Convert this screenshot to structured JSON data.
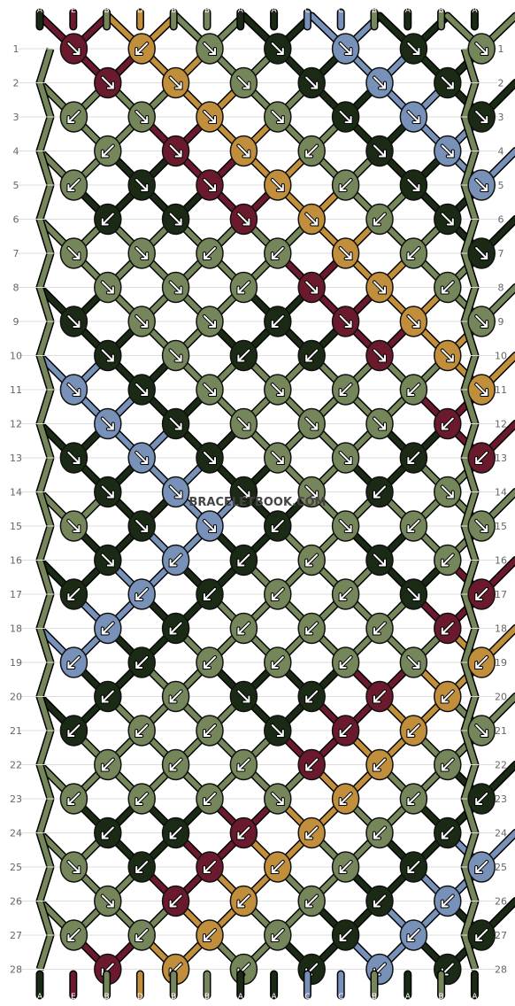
{
  "title": "BRACELETBOOK.COM",
  "colors": {
    "A": "#1a2a14",
    "B": "#75865a",
    "C": "#7891b8",
    "D": "#c18e3b",
    "E": "#6a1a2c"
  },
  "top_strings": [
    "A",
    "E",
    "B",
    "D",
    "B",
    "B",
    "A",
    "A",
    "C",
    "C",
    "B",
    "A",
    "B",
    "A"
  ],
  "bottom_strings": [
    "A",
    "E",
    "B",
    "D",
    "B",
    "B",
    "A",
    "A",
    "C",
    "C",
    "B",
    "A",
    "B",
    "A"
  ],
  "rows": [
    {
      "label": "1",
      "knots": [
        {
          "c": "E",
          "d": "r"
        },
        {
          "c": "D",
          "d": "l"
        },
        {
          "c": "B",
          "d": "r"
        },
        {
          "c": "A",
          "d": "r"
        },
        {
          "c": "C",
          "d": "r"
        },
        {
          "c": "A",
          "d": "r"
        },
        {
          "c": "B",
          "d": "r"
        }
      ]
    },
    {
      "label": "2",
      "knots": [
        {
          "c": "E",
          "d": "r"
        },
        {
          "c": "D",
          "d": "r"
        },
        {
          "c": "B",
          "d": "r"
        },
        {
          "c": "A",
          "d": "r"
        },
        {
          "c": "C",
          "d": "r"
        },
        {
          "c": "A",
          "d": "r"
        }
      ]
    },
    {
      "label": "3",
      "knots": [
        {
          "c": "B",
          "d": "l"
        },
        {
          "c": "B",
          "d": "r"
        },
        {
          "c": "D",
          "d": "r"
        },
        {
          "c": "B",
          "d": "r"
        },
        {
          "c": "A",
          "d": "r"
        },
        {
          "c": "C",
          "d": "r"
        },
        {
          "c": "A",
          "d": "r"
        }
      ]
    },
    {
      "label": "4",
      "knots": [
        {
          "c": "B",
          "d": "l"
        },
        {
          "c": "E",
          "d": "r"
        },
        {
          "c": "D",
          "d": "r"
        },
        {
          "c": "B",
          "d": "l"
        },
        {
          "c": "A",
          "d": "r"
        },
        {
          "c": "C",
          "d": "r"
        }
      ]
    },
    {
      "label": "5",
      "knots": [
        {
          "c": "B",
          "d": "l"
        },
        {
          "c": "A",
          "d": "r"
        },
        {
          "c": "E",
          "d": "r"
        },
        {
          "c": "D",
          "d": "r"
        },
        {
          "c": "B",
          "d": "l"
        },
        {
          "c": "A",
          "d": "r"
        },
        {
          "c": "C",
          "d": "r"
        }
      ]
    },
    {
      "label": "6",
      "knots": [
        {
          "c": "A",
          "d": "l"
        },
        {
          "c": "A",
          "d": "r"
        },
        {
          "c": "E",
          "d": "r"
        },
        {
          "c": "D",
          "d": "r"
        },
        {
          "c": "B",
          "d": "l"
        },
        {
          "c": "A",
          "d": "r"
        }
      ]
    },
    {
      "label": "7",
      "knots": [
        {
          "c": "B",
          "d": "r"
        },
        {
          "c": "B",
          "d": "r"
        },
        {
          "c": "B",
          "d": "l"
        },
        {
          "c": "B",
          "d": "l"
        },
        {
          "c": "D",
          "d": "r"
        },
        {
          "c": "B",
          "d": "l"
        },
        {
          "c": "A",
          "d": "r"
        }
      ]
    },
    {
      "label": "8",
      "knots": [
        {
          "c": "B",
          "d": "r"
        },
        {
          "c": "B",
          "d": "r"
        },
        {
          "c": "B",
          "d": "l"
        },
        {
          "c": "E",
          "d": "r"
        },
        {
          "c": "D",
          "d": "r"
        },
        {
          "c": "B",
          "d": "l"
        }
      ]
    },
    {
      "label": "9",
      "knots": [
        {
          "c": "A",
          "d": "r"
        },
        {
          "c": "B",
          "d": "r"
        },
        {
          "c": "B",
          "d": "r"
        },
        {
          "c": "A",
          "d": "l"
        },
        {
          "c": "E",
          "d": "r"
        },
        {
          "c": "D",
          "d": "r"
        },
        {
          "c": "B",
          "d": "r"
        }
      ]
    },
    {
      "label": "10",
      "knots": [
        {
          "c": "A",
          "d": "r"
        },
        {
          "c": "B",
          "d": "r"
        },
        {
          "c": "A",
          "d": "l"
        },
        {
          "c": "A",
          "d": "l"
        },
        {
          "c": "E",
          "d": "r"
        },
        {
          "c": "D",
          "d": "r"
        }
      ]
    },
    {
      "label": "11",
      "knots": [
        {
          "c": "C",
          "d": "r"
        },
        {
          "c": "A",
          "d": "r"
        },
        {
          "c": "B",
          "d": "r"
        },
        {
          "c": "B",
          "d": "r"
        },
        {
          "c": "B",
          "d": "l"
        },
        {
          "c": "B",
          "d": "l"
        },
        {
          "c": "D",
          "d": "r"
        }
      ]
    },
    {
      "label": "12",
      "knots": [
        {
          "c": "C",
          "d": "r"
        },
        {
          "c": "A",
          "d": "r"
        },
        {
          "c": "B",
          "d": "r"
        },
        {
          "c": "B",
          "d": "r"
        },
        {
          "c": "B",
          "d": "r"
        },
        {
          "c": "E",
          "d": "l"
        }
      ]
    },
    {
      "label": "13",
      "knots": [
        {
          "c": "A",
          "d": "r"
        },
        {
          "c": "C",
          "d": "r"
        },
        {
          "c": "A",
          "d": "r"
        },
        {
          "c": "B",
          "d": "r"
        },
        {
          "c": "B",
          "d": "r"
        },
        {
          "c": "A",
          "d": "l"
        },
        {
          "c": "E",
          "d": "l"
        }
      ]
    },
    {
      "label": "14",
      "knots": [
        {
          "c": "A",
          "d": "r"
        },
        {
          "c": "C",
          "d": "r"
        },
        {
          "c": "A",
          "d": "r"
        },
        {
          "c": "B",
          "d": "r"
        },
        {
          "c": "A",
          "d": "l"
        },
        {
          "c": "B",
          "d": "r"
        }
      ]
    },
    {
      "label": "15",
      "knots": [
        {
          "c": "B",
          "d": "r"
        },
        {
          "c": "A",
          "d": "r"
        },
        {
          "c": "C",
          "d": "r"
        },
        {
          "c": "A",
          "d": "l"
        },
        {
          "c": "B",
          "d": "r"
        },
        {
          "c": "B",
          "d": "l"
        },
        {
          "c": "B",
          "d": "r"
        }
      ]
    },
    {
      "label": "16",
      "knots": [
        {
          "c": "A",
          "d": "r"
        },
        {
          "c": "C",
          "d": "l"
        },
        {
          "c": "A",
          "d": "l"
        },
        {
          "c": "B",
          "d": "l"
        },
        {
          "c": "A",
          "d": "r"
        },
        {
          "c": "B",
          "d": "l"
        }
      ]
    },
    {
      "label": "17",
      "knots": [
        {
          "c": "A",
          "d": "l"
        },
        {
          "c": "C",
          "d": "l"
        },
        {
          "c": "A",
          "d": "l"
        },
        {
          "c": "B",
          "d": "l"
        },
        {
          "c": "B",
          "d": "l"
        },
        {
          "c": "A",
          "d": "r"
        },
        {
          "c": "E",
          "d": "l"
        }
      ]
    },
    {
      "label": "18",
      "knots": [
        {
          "c": "C",
          "d": "l"
        },
        {
          "c": "A",
          "d": "l"
        },
        {
          "c": "B",
          "d": "l"
        },
        {
          "c": "B",
          "d": "l"
        },
        {
          "c": "B",
          "d": "l"
        },
        {
          "c": "E",
          "d": "l"
        }
      ]
    },
    {
      "label": "19",
      "knots": [
        {
          "c": "C",
          "d": "l"
        },
        {
          "c": "A",
          "d": "l"
        },
        {
          "c": "B",
          "d": "l"
        },
        {
          "c": "B",
          "d": "l"
        },
        {
          "c": "B",
          "d": "l"
        },
        {
          "c": "B",
          "d": "r"
        },
        {
          "c": "D",
          "d": "l"
        }
      ]
    },
    {
      "label": "20",
      "knots": [
        {
          "c": "A",
          "d": "l"
        },
        {
          "c": "B",
          "d": "l"
        },
        {
          "c": "A",
          "d": "r"
        },
        {
          "c": "A",
          "d": "l"
        },
        {
          "c": "E",
          "d": "l"
        },
        {
          "c": "D",
          "d": "l"
        }
      ]
    },
    {
      "label": "21",
      "knots": [
        {
          "c": "A",
          "d": "l"
        },
        {
          "c": "B",
          "d": "l"
        },
        {
          "c": "B",
          "d": "l"
        },
        {
          "c": "A",
          "d": "r"
        },
        {
          "c": "E",
          "d": "l"
        },
        {
          "c": "D",
          "d": "l"
        },
        {
          "c": "B",
          "d": "r"
        }
      ]
    },
    {
      "label": "22",
      "knots": [
        {
          "c": "B",
          "d": "l"
        },
        {
          "c": "B",
          "d": "l"
        },
        {
          "c": "B",
          "d": "l"
        },
        {
          "c": "E",
          "d": "l"
        },
        {
          "c": "D",
          "d": "l"
        },
        {
          "c": "B",
          "d": "l"
        }
      ]
    },
    {
      "label": "23",
      "knots": [
        {
          "c": "B",
          "d": "l"
        },
        {
          "c": "B",
          "d": "l"
        },
        {
          "c": "B",
          "d": "l"
        },
        {
          "c": "B",
          "d": "r"
        },
        {
          "c": "D",
          "d": "l"
        },
        {
          "c": "B",
          "d": "l"
        },
        {
          "c": "A",
          "d": "l"
        }
      ]
    },
    {
      "label": "24",
      "knots": [
        {
          "c": "A",
          "d": "l"
        },
        {
          "c": "A",
          "d": "l"
        },
        {
          "c": "E",
          "d": "l"
        },
        {
          "c": "D",
          "d": "l"
        },
        {
          "c": "B",
          "d": "l"
        },
        {
          "c": "A",
          "d": "l"
        }
      ]
    },
    {
      "label": "25",
      "knots": [
        {
          "c": "B",
          "d": "r"
        },
        {
          "c": "A",
          "d": "l"
        },
        {
          "c": "E",
          "d": "l"
        },
        {
          "c": "D",
          "d": "l"
        },
        {
          "c": "B",
          "d": "l"
        },
        {
          "c": "A",
          "d": "l"
        },
        {
          "c": "C",
          "d": "l"
        }
      ]
    },
    {
      "label": "26",
      "knots": [
        {
          "c": "B",
          "d": "r"
        },
        {
          "c": "E",
          "d": "l"
        },
        {
          "c": "D",
          "d": "l"
        },
        {
          "c": "B",
          "d": "l"
        },
        {
          "c": "A",
          "d": "l"
        },
        {
          "c": "C",
          "d": "l"
        }
      ]
    },
    {
      "label": "27",
      "knots": [
        {
          "c": "B",
          "d": "l"
        },
        {
          "c": "B",
          "d": "l"
        },
        {
          "c": "D",
          "d": "l"
        },
        {
          "c": "B",
          "d": "l"
        },
        {
          "c": "A",
          "d": "l"
        },
        {
          "c": "C",
          "d": "l"
        },
        {
          "c": "A",
          "d": "l"
        }
      ]
    },
    {
      "label": "28",
      "knots": [
        {
          "c": "E",
          "d": "l"
        },
        {
          "c": "D",
          "d": "l"
        },
        {
          "c": "B",
          "d": "l"
        },
        {
          "c": "A",
          "d": "l"
        },
        {
          "c": "C",
          "d": "l"
        },
        {
          "c": "A",
          "d": "l"
        }
      ]
    }
  ]
}
